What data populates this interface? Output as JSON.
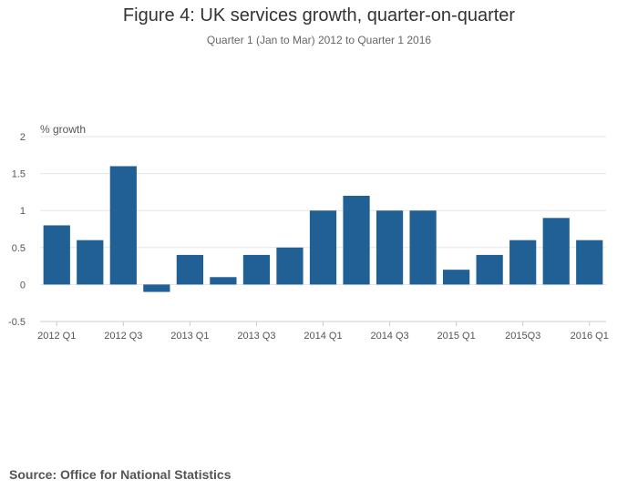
{
  "chart_data": {
    "type": "bar",
    "title": "Figure 4: UK services growth, quarter-on-quarter",
    "subtitle": "Quarter 1 (Jan to Mar) 2012 to Quarter 1 2016",
    "ylabel": "% growth",
    "xlabel": "",
    "ylim": [
      -0.5,
      2
    ],
    "yticks": [
      2,
      1.5,
      1,
      0.5,
      0,
      -0.5
    ],
    "yticklabels": [
      "2",
      "1.5",
      "1",
      "0.5",
      "0",
      "-0.5"
    ],
    "grid": true,
    "categories": [
      "2012 Q1",
      "2012 Q2",
      "2012 Q3",
      "2012 Q4",
      "2013 Q1",
      "2013 Q2",
      "2013 Q3",
      "2013 Q4",
      "2014 Q1",
      "2014 Q2",
      "2014 Q3",
      "2014 Q4",
      "2015 Q1",
      "2015 Q2",
      "2015Q3",
      "2015 Q4",
      "2016 Q1"
    ],
    "xticklabels": [
      {
        "index": 0,
        "label": "2012 Q1"
      },
      {
        "index": 2,
        "label": "2012 Q3"
      },
      {
        "index": 4,
        "label": "2013 Q1"
      },
      {
        "index": 6,
        "label": "2013 Q3"
      },
      {
        "index": 8,
        "label": "2014 Q1"
      },
      {
        "index": 10,
        "label": "2014 Q3"
      },
      {
        "index": 12,
        "label": "2015 Q1"
      },
      {
        "index": 14,
        "label": "2015Q3"
      },
      {
        "index": 16,
        "label": "2016 Q1"
      }
    ],
    "values": [
      0.8,
      0.6,
      1.6,
      -0.1,
      0.4,
      0.1,
      0.4,
      0.5,
      1.0,
      1.2,
      1.0,
      1.0,
      0.2,
      0.4,
      0.6,
      0.9,
      0.6
    ],
    "bar_color": "#206095",
    "grid_color": "#e5e5e5",
    "axis_color": "#cccccc"
  },
  "source": "Source: Office for National Statistics"
}
